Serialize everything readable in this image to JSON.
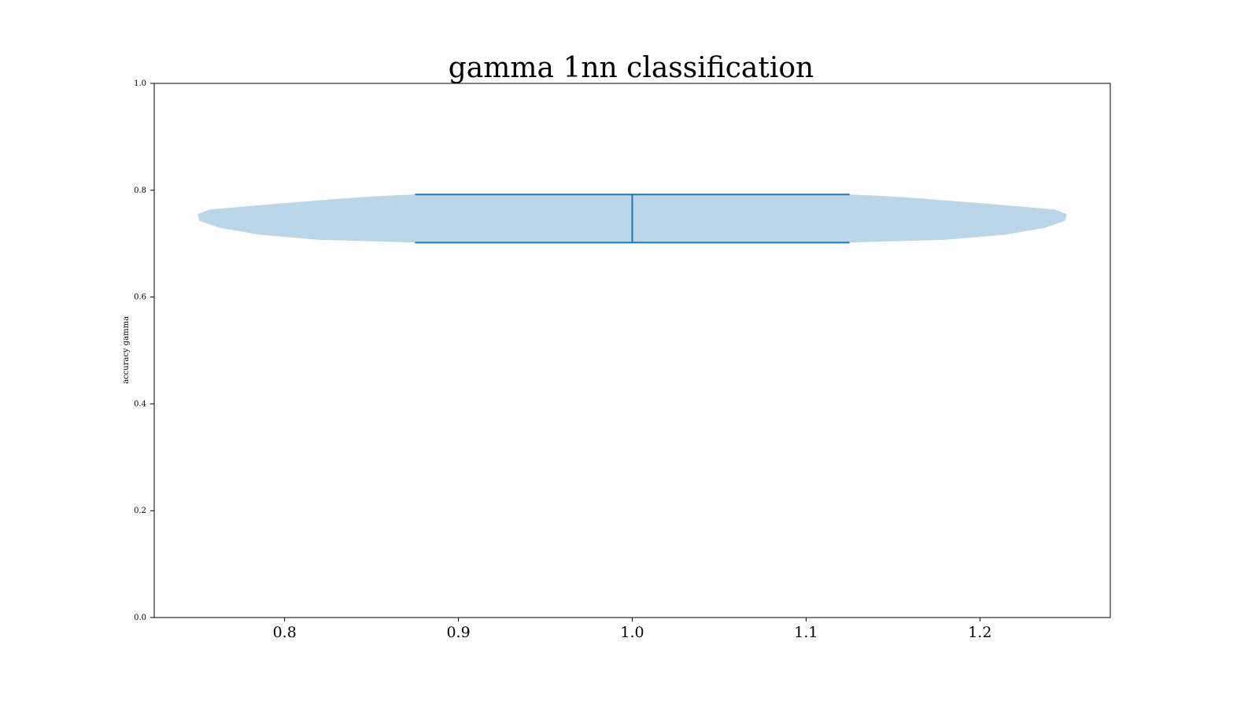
{
  "chart_data": {
    "type": "violin",
    "title": "gamma 1nn classification",
    "xlabel": "",
    "ylabel": "accuracy gamma",
    "xlim": [
      0.725,
      1.275
    ],
    "ylim": [
      0.0,
      1.0
    ],
    "xticks": [
      "0.8",
      "0.9",
      "1.0",
      "1.1",
      "1.2"
    ],
    "yticks": [
      "0.0",
      "0.2",
      "0.4",
      "0.6",
      "0.8",
      "1.0"
    ],
    "series": [
      {
        "position": 1.0,
        "min": 0.702,
        "max": 0.792,
        "median_line": "vertical",
        "density_profile": [
          {
            "y": 0.702,
            "halfwidth": 0.125
          },
          {
            "y": 0.707,
            "halfwidth": 0.18
          },
          {
            "y": 0.717,
            "halfwidth": 0.215
          },
          {
            "y": 0.73,
            "halfwidth": 0.238
          },
          {
            "y": 0.743,
            "halfwidth": 0.249
          },
          {
            "y": 0.755,
            "halfwidth": 0.25
          },
          {
            "y": 0.764,
            "halfwidth": 0.243
          },
          {
            "y": 0.776,
            "halfwidth": 0.2
          },
          {
            "y": 0.786,
            "halfwidth": 0.16
          },
          {
            "y": 0.79,
            "halfwidth": 0.14
          },
          {
            "y": 0.792,
            "halfwidth": 0.125
          }
        ]
      }
    ],
    "colors": {
      "body": "#1f77b4",
      "body_alpha": 0.3,
      "lines": "#1f77b4",
      "axes": "#000000"
    },
    "grid": false
  }
}
